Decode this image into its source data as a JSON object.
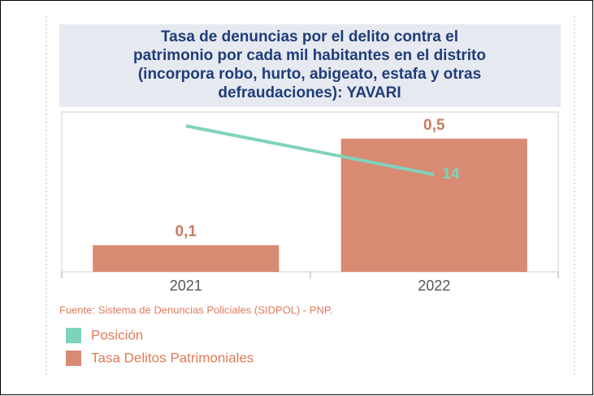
{
  "chart_data": {
    "type": "bar_line",
    "title": [
      "Tasa de denuncias por el delito contra el",
      "patrimonio por cada mil habitantes en el distrito",
      "(incorpora robo, hurto, abigeato, estafa y otras",
      "defraudaciones): YAVARI"
    ],
    "categories": [
      "2021",
      "2022"
    ],
    "series": [
      {
        "name": "Posición",
        "color": "#7fd3bd",
        "type": "line",
        "axis": "y2",
        "values": [
          21,
          14
        ],
        "value_labels": [
          null,
          "14"
        ]
      },
      {
        "name": "Tasa Delitos Patrimoniales",
        "color": "#d98a72",
        "type": "bar",
        "values": [
          0.1,
          0.5
        ],
        "value_labels": [
          "0,1",
          "0,5"
        ]
      }
    ],
    "ylim": [
      0,
      0.6
    ],
    "y2lim": [
      0,
      23
    ],
    "source": "Fuente: Sistema de Denuncias Policiales (SIDPOL) - PNP."
  }
}
